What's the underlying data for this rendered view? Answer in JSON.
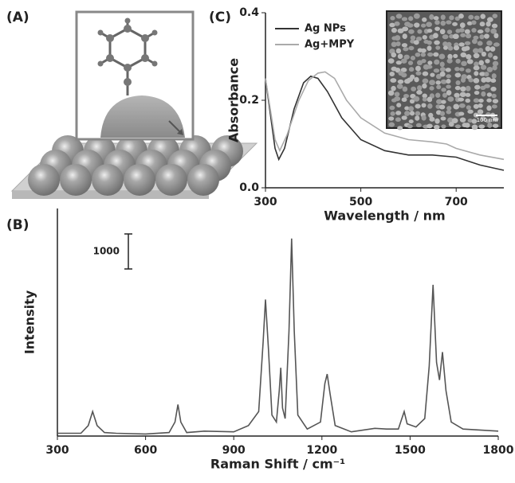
{
  "illustration": {
    "panel": "(A)"
  },
  "chart_data": [
    {
      "type": "line",
      "panel": "(B)",
      "x_label": "Raman Shift / cm⁻¹",
      "y_label": "Intensity",
      "xlim": [
        300,
        1800
      ],
      "xticks": [
        300,
        600,
        900,
        1200,
        1500,
        1800
      ],
      "ylim": [
        0,
        6500
      ],
      "scale_bar": 1000,
      "series": [
        {
          "color": "#555555",
          "x": [
            300,
            380,
            405,
            420,
            435,
            460,
            500,
            600,
            680,
            700,
            710,
            720,
            740,
            800,
            900,
            950,
            985,
            1000,
            1008,
            1018,
            1030,
            1045,
            1055,
            1060,
            1066,
            1075,
            1088,
            1097,
            1106,
            1118,
            1150,
            1195,
            1210,
            1218,
            1228,
            1245,
            1300,
            1380,
            1420,
            1460,
            1470,
            1480,
            1490,
            1520,
            1550,
            1565,
            1578,
            1590,
            1600,
            1610,
            1622,
            1640,
            1680,
            1800
          ],
          "values": [
            80,
            80,
            300,
            700,
            300,
            100,
            80,
            60,
            100,
            400,
            900,
            400,
            100,
            140,
            120,
            300,
            700,
            2700,
            3900,
            2500,
            600,
            400,
            1300,
            1950,
            800,
            500,
            3000,
            5640,
            3000,
            600,
            200,
            400,
            1500,
            1770,
            1200,
            300,
            120,
            220,
            200,
            200,
            450,
            700,
            350,
            260,
            500,
            2000,
            4320,
            2100,
            1600,
            2400,
            1300,
            400,
            200,
            140
          ]
        }
      ]
    },
    {
      "type": "line",
      "panel": "(C)",
      "x_label": "Wavelength / nm",
      "y_label": "Absorbance",
      "xlim": [
        300,
        800
      ],
      "xticks": [
        300,
        500,
        700
      ],
      "ylim": [
        0,
        0.4
      ],
      "yticks": [
        {
          "value": 0,
          "label": "0.0"
        },
        {
          "value": 0.2,
          "label": "0.2"
        },
        {
          "value": 0.4,
          "label": "0.4"
        }
      ],
      "inset_scale_label": "100 nm",
      "series": [
        {
          "name": "Ag NPs",
          "color": "#333333",
          "x": [
            300,
            310,
            320,
            328,
            340,
            360,
            380,
            395,
            410,
            430,
            460,
            500,
            550,
            600,
            650,
            700,
            750,
            800
          ],
          "values": [
            0.25,
            0.17,
            0.09,
            0.065,
            0.09,
            0.18,
            0.24,
            0.255,
            0.25,
            0.22,
            0.16,
            0.11,
            0.085,
            0.075,
            0.075,
            0.07,
            0.052,
            0.04
          ]
        },
        {
          "name": "Ag+MPY",
          "color": "#aaaaaa",
          "x": [
            300,
            310,
            320,
            330,
            345,
            370,
            390,
            410,
            425,
            445,
            470,
            500,
            550,
            600,
            650,
            680,
            700,
            750,
            800
          ],
          "values": [
            0.25,
            0.18,
            0.11,
            0.085,
            0.12,
            0.2,
            0.245,
            0.262,
            0.265,
            0.25,
            0.2,
            0.16,
            0.125,
            0.11,
            0.105,
            0.1,
            0.09,
            0.075,
            0.065
          ]
        }
      ]
    }
  ]
}
